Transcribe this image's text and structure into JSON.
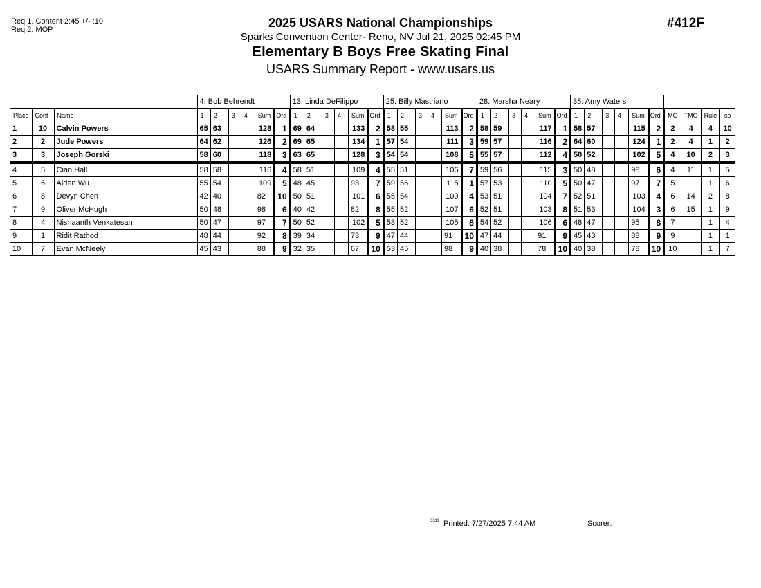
{
  "requirements": [
    "Req  1.  Content 2:45 +/- :10",
    "Req  2.  MOP"
  ],
  "header": {
    "title": "2025 USARS National Championships",
    "venue": "Sparks Convention Center- Reno, NV  Jul 21, 2025  02:45 PM",
    "event": "Elementary B Boys Free Skating Final",
    "report": "USARS Summary Report - www.usars.us",
    "event_code": "#412F"
  },
  "judges": [
    "4.  Bob Behrendt",
    "13.  Linda DeFilippo",
    "25.  Billy Mastriano",
    "28.  Marsha Neary",
    "35.  Amy Waters"
  ],
  "columns": {
    "place": "Place",
    "cont": "Cont",
    "name": "Name",
    "judge_cols": [
      "1",
      "2",
      "3",
      "4",
      "Sum",
      "Ord"
    ],
    "mo": "MO",
    "tmo": "TMO",
    "rule": "Rule",
    "so": "so"
  },
  "rows": [
    {
      "place": "1",
      "cont": "10",
      "name": "Calvin Powers",
      "scores": [
        [
          "65",
          "63",
          "",
          "",
          "128",
          "1"
        ],
        [
          "69",
          "64",
          "",
          "",
          "133",
          "2"
        ],
        [
          "58",
          "55",
          "",
          "",
          "113",
          "2"
        ],
        [
          "58",
          "59",
          "",
          "",
          "117",
          "1"
        ],
        [
          "58",
          "57",
          "",
          "",
          "115",
          "2"
        ]
      ],
      "mo": "2",
      "tmo": "4",
      "rule": "4",
      "so": "10"
    },
    {
      "place": "2",
      "cont": "2",
      "name": "Jude Powers",
      "scores": [
        [
          "64",
          "62",
          "",
          "",
          "126",
          "2"
        ],
        [
          "69",
          "65",
          "",
          "",
          "134",
          "1"
        ],
        [
          "57",
          "54",
          "",
          "",
          "111",
          "3"
        ],
        [
          "59",
          "57",
          "",
          "",
          "116",
          "2"
        ],
        [
          "64",
          "60",
          "",
          "",
          "124",
          "1"
        ]
      ],
      "mo": "2",
      "tmo": "4",
      "rule": "1",
      "so": "2"
    },
    {
      "place": "3",
      "cont": "3",
      "name": "Joseph Gorski",
      "scores": [
        [
          "58",
          "60",
          "",
          "",
          "118",
          "3"
        ],
        [
          "63",
          "65",
          "",
          "",
          "128",
          "3"
        ],
        [
          "54",
          "54",
          "",
          "",
          "108",
          "5"
        ],
        [
          "55",
          "57",
          "",
          "",
          "112",
          "4"
        ],
        [
          "50",
          "52",
          "",
          "",
          "102",
          "5"
        ]
      ],
      "mo": "4",
      "tmo": "10",
      "rule": "2",
      "so": "3"
    },
    {
      "place": "4",
      "cont": "5",
      "name": "Cian Hall",
      "scores": [
        [
          "58",
          "58",
          "",
          "",
          "116",
          "4"
        ],
        [
          "58",
          "51",
          "",
          "",
          "109",
          "4"
        ],
        [
          "55",
          "51",
          "",
          "",
          "106",
          "7"
        ],
        [
          "59",
          "56",
          "",
          "",
          "115",
          "3"
        ],
        [
          "50",
          "48",
          "",
          "",
          "98",
          "6"
        ]
      ],
      "mo": "4",
      "tmo": "11",
      "rule": "1",
      "so": "5"
    },
    {
      "place": "5",
      "cont": "6",
      "name": "Aiden Wu",
      "scores": [
        [
          "55",
          "54",
          "",
          "",
          "109",
          "5"
        ],
        [
          "48",
          "45",
          "",
          "",
          "93",
          "7"
        ],
        [
          "59",
          "56",
          "",
          "",
          "115",
          "1"
        ],
        [
          "57",
          "53",
          "",
          "",
          "110",
          "5"
        ],
        [
          "50",
          "47",
          "",
          "",
          "97",
          "7"
        ]
      ],
      "mo": "5",
      "tmo": "",
      "rule": "1",
      "so": "6"
    },
    {
      "place": "6",
      "cont": "8",
      "name": "Devyn Chen",
      "scores": [
        [
          "42",
          "40",
          "",
          "",
          "82",
          "10"
        ],
        [
          "50",
          "51",
          "",
          "",
          "101",
          "6"
        ],
        [
          "55",
          "54",
          "",
          "",
          "109",
          "4"
        ],
        [
          "53",
          "51",
          "",
          "",
          "104",
          "7"
        ],
        [
          "52",
          "51",
          "",
          "",
          "103",
          "4"
        ]
      ],
      "mo": "6",
      "tmo": "14",
      "rule": "2",
      "so": "8"
    },
    {
      "place": "7",
      "cont": "9",
      "name": "Oliver McHugh",
      "scores": [
        [
          "50",
          "48",
          "",
          "",
          "98",
          "6"
        ],
        [
          "40",
          "42",
          "",
          "",
          "82",
          "8"
        ],
        [
          "55",
          "52",
          "",
          "",
          "107",
          "6"
        ],
        [
          "52",
          "51",
          "",
          "",
          "103",
          "8"
        ],
        [
          "51",
          "53",
          "",
          "",
          "104",
          "3"
        ]
      ],
      "mo": "6",
      "tmo": "15",
      "rule": "1",
      "so": "9"
    },
    {
      "place": "8",
      "cont": "4",
      "name": "Nishaanth Venkatesan",
      "scores": [
        [
          "50",
          "47",
          "",
          "",
          "97",
          "7"
        ],
        [
          "50",
          "52",
          "",
          "",
          "102",
          "5"
        ],
        [
          "53",
          "52",
          "",
          "",
          "105",
          "8"
        ],
        [
          "54",
          "52",
          "",
          "",
          "106",
          "6"
        ],
        [
          "48",
          "47",
          "",
          "",
          "95",
          "8"
        ]
      ],
      "mo": "7",
      "tmo": "",
      "rule": "1",
      "so": "4"
    },
    {
      "place": "9",
      "cont": "1",
      "name": "Ridit Rathod",
      "scores": [
        [
          "48",
          "44",
          "",
          "",
          "92",
          "8"
        ],
        [
          "39",
          "34",
          "",
          "",
          "73",
          "9"
        ],
        [
          "47",
          "44",
          "",
          "",
          "91",
          "10"
        ],
        [
          "47",
          "44",
          "",
          "",
          "91",
          "9"
        ],
        [
          "45",
          "43",
          "",
          "",
          "88",
          "9"
        ]
      ],
      "mo": "9",
      "tmo": "",
      "rule": "1",
      "so": "1"
    },
    {
      "place": "10",
      "cont": "7",
      "name": "Evan McNeely",
      "scores": [
        [
          "45",
          "43",
          "",
          "",
          "88",
          "9"
        ],
        [
          "32",
          "35",
          "",
          "",
          "67",
          "10"
        ],
        [
          "53",
          "45",
          "",
          "",
          "98",
          "9"
        ],
        [
          "40",
          "38",
          "",
          "",
          "78",
          "10"
        ],
        [
          "40",
          "38",
          "",
          "",
          "78",
          "10"
        ]
      ],
      "mo": "10",
      "tmo": "",
      "rule": "1",
      "so": "7"
    }
  ],
  "footer": {
    "code": "3319",
    "printed": "Printed:  7/27/2025  7:44 AM",
    "scorer": "Scorer:"
  }
}
